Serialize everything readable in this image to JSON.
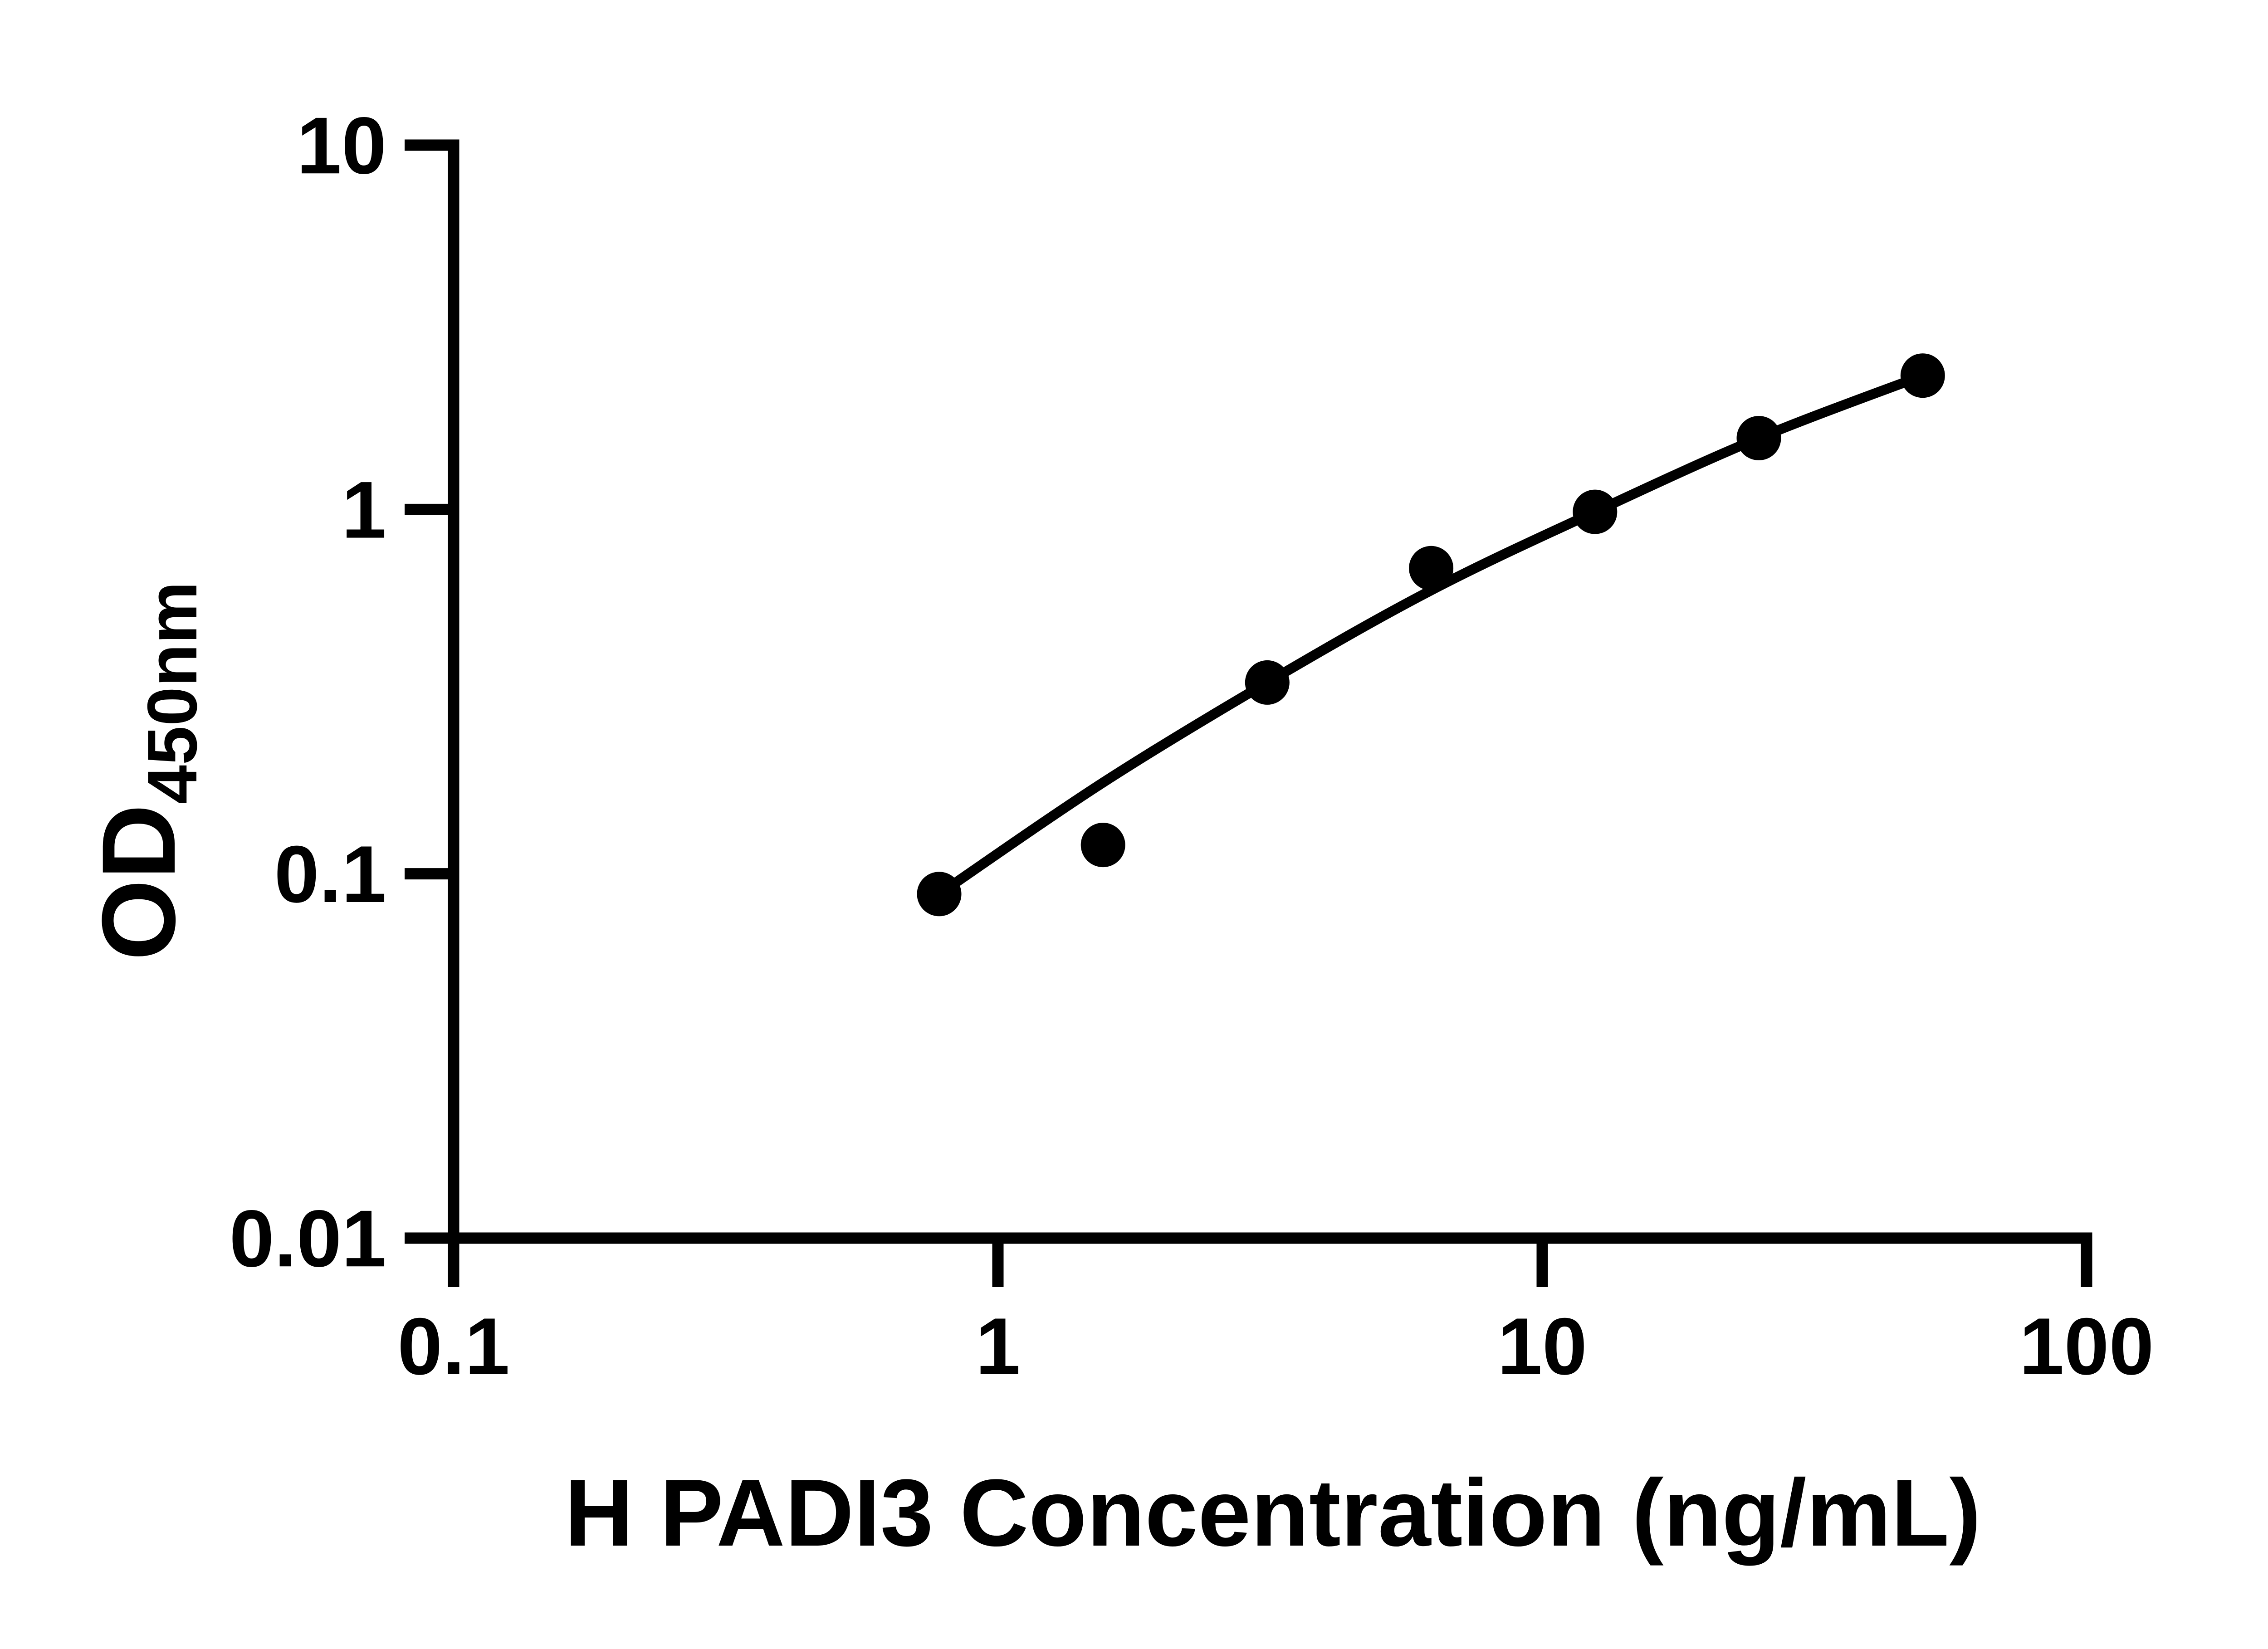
{
  "figure": {
    "background": "#ffffff",
    "foreground": "#000000"
  },
  "chart_data": {
    "type": "scatter",
    "title": "",
    "xlabel": "H PADI3 Concentration (ng/mL)",
    "ylabel": {
      "main": "OD",
      "subscript": "450nm"
    },
    "x_scale": "log",
    "y_scale": "log",
    "xlim": [
      0.1,
      100
    ],
    "ylim": [
      0.01,
      10
    ],
    "x_ticks": [
      {
        "value": 0.1,
        "label": "0.1"
      },
      {
        "value": 1,
        "label": "1"
      },
      {
        "value": 10,
        "label": "10"
      },
      {
        "value": 100,
        "label": "100"
      }
    ],
    "y_ticks": [
      {
        "value": 10,
        "label": "10"
      },
      {
        "value": 1,
        "label": "1"
      },
      {
        "value": 0.1,
        "label": "0.1"
      },
      {
        "value": 0.01,
        "label": "0.01"
      }
    ],
    "grid": false,
    "legend": "none",
    "marker_color": "#000000",
    "line_color": "#000000",
    "series": [
      {
        "name": "H PADI3 standard curve points",
        "marker": "circle",
        "points": [
          {
            "x": 0.78,
            "y": 0.088
          },
          {
            "x": 1.56,
            "y": 0.12
          },
          {
            "x": 3.125,
            "y": 0.335
          },
          {
            "x": 6.25,
            "y": 0.69
          },
          {
            "x": 12.5,
            "y": 0.985
          },
          {
            "x": 25,
            "y": 1.57
          },
          {
            "x": 50,
            "y": 2.33
          }
        ]
      }
    ],
    "fit_curve": {
      "name": "4PL fit curve",
      "points": [
        {
          "x": 0.78,
          "y": 0.088
        },
        {
          "x": 1.56,
          "y": 0.178
        },
        {
          "x": 3.125,
          "y": 0.335
        },
        {
          "x": 6.25,
          "y": 0.6
        },
        {
          "x": 12.5,
          "y": 0.985
        },
        {
          "x": 25,
          "y": 1.57
        },
        {
          "x": 50,
          "y": 2.33
        }
      ]
    }
  }
}
